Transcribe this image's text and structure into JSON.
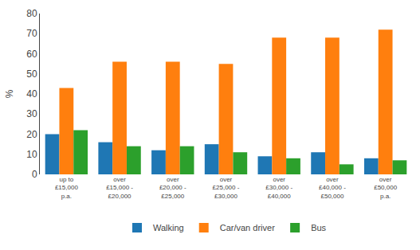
{
  "chart_data": {
    "type": "bar",
    "categories": [
      "up to\n£15,000\np.a.",
      "over\n£15,000 -\n£20,000",
      "over\n£20,000 -\n£25,000",
      "over\n£25,000 -\n£30,000",
      "over\n£30,000 -\n£40,000",
      "over\n£40,000 -\n£50,000",
      "over\n£50,000\np.a."
    ],
    "series": [
      {
        "name": "Walking",
        "values": [
          20,
          16,
          12,
          15,
          9,
          11,
          8
        ]
      },
      {
        "name": "Car/van driver",
        "values": [
          43,
          56,
          56,
          55,
          68,
          68,
          72
        ]
      },
      {
        "name": "Bus",
        "values": [
          22,
          14,
          14,
          11,
          8,
          5,
          7
        ]
      }
    ],
    "ylabel": "%",
    "ylim": [
      0,
      80
    ],
    "yticks": [
      0,
      10,
      20,
      30,
      40,
      50,
      60,
      70,
      80
    ],
    "grid": false,
    "legend": "bottom"
  }
}
